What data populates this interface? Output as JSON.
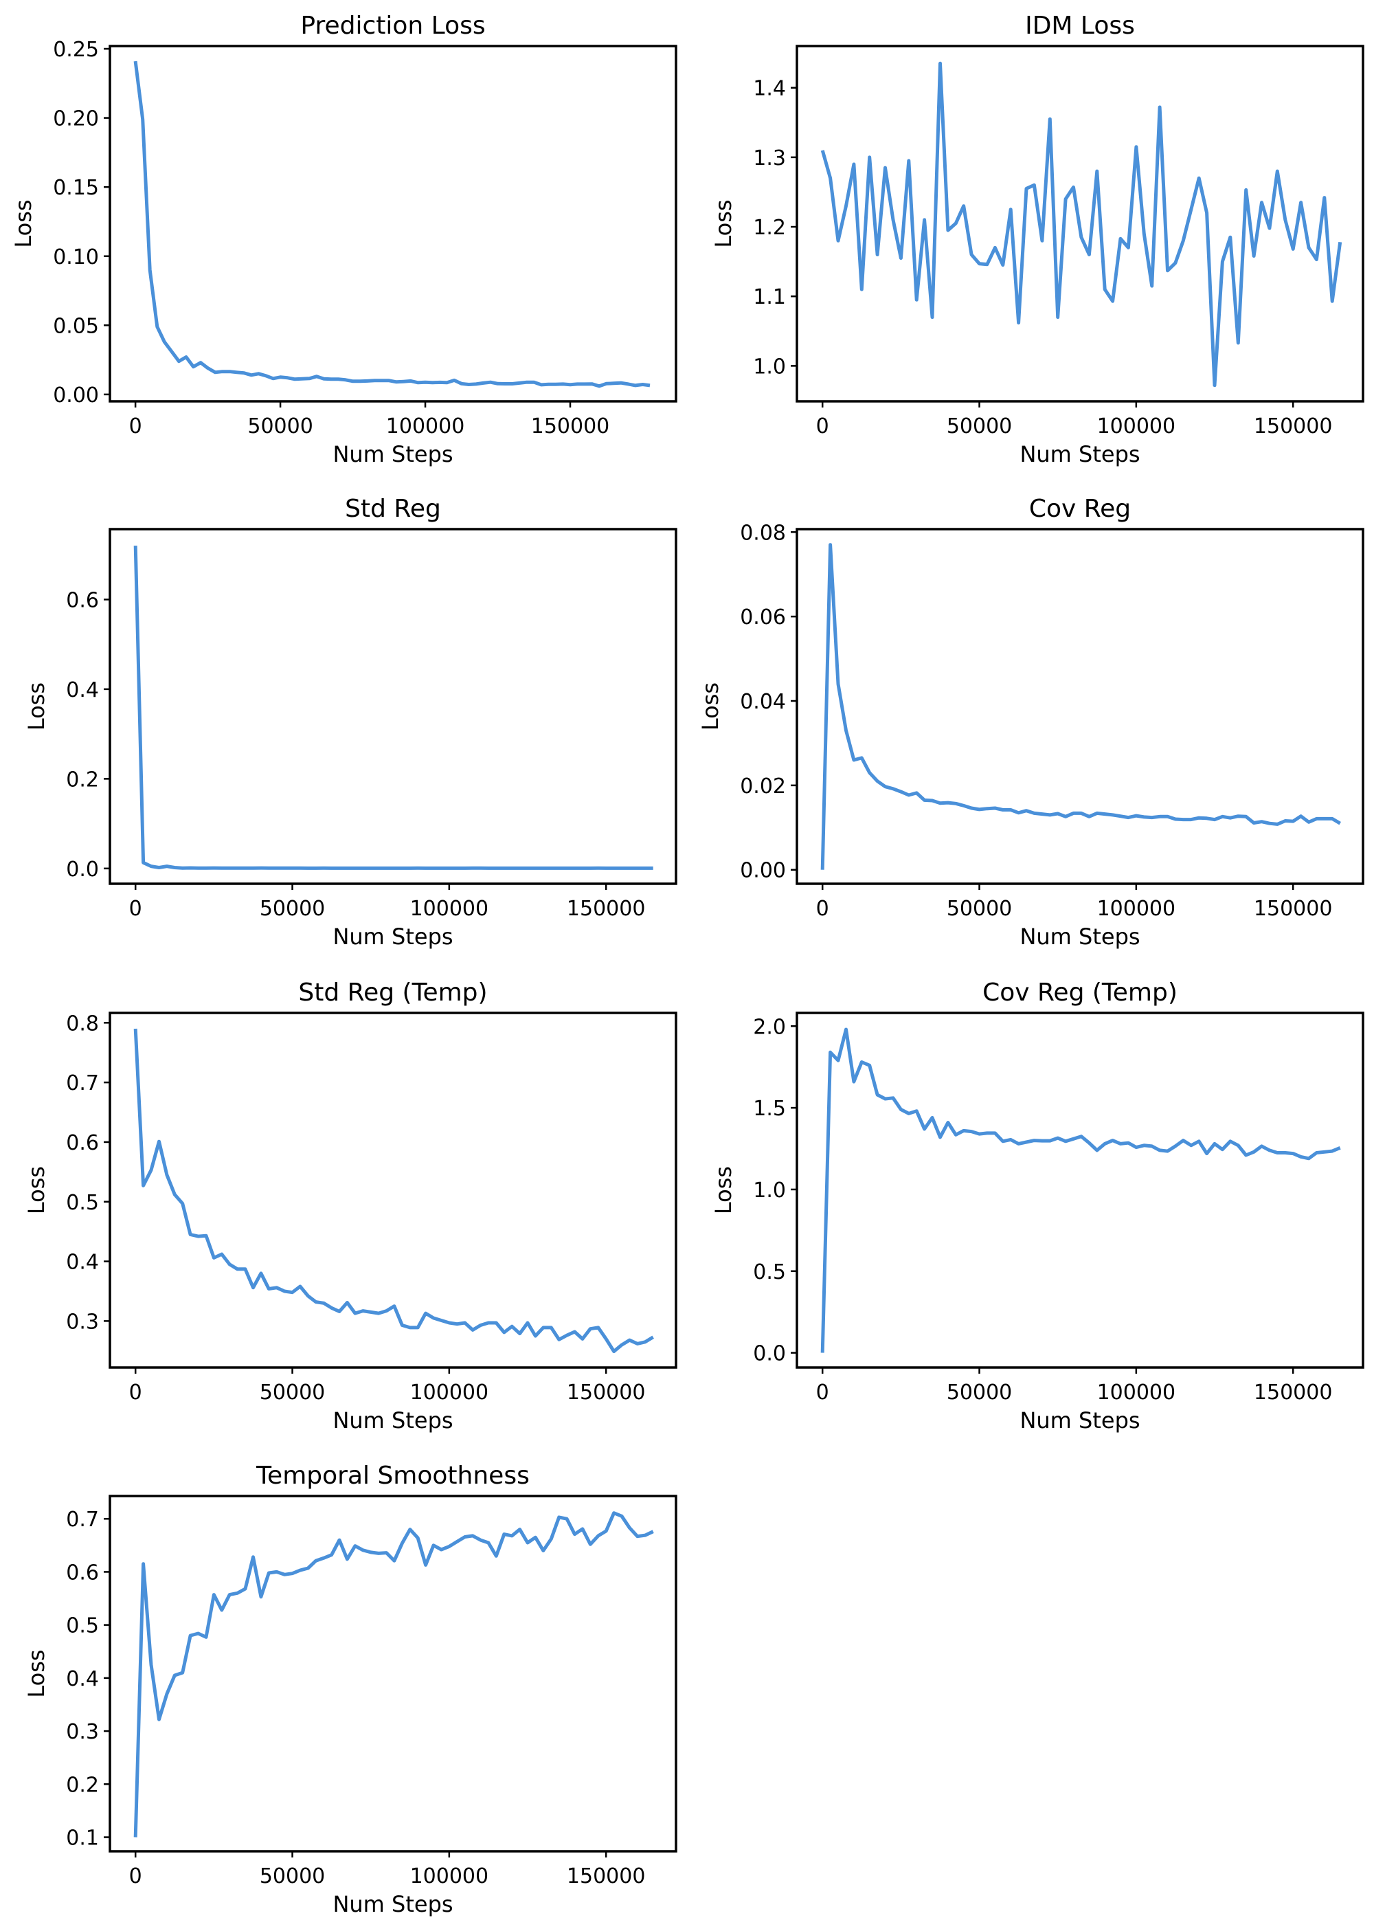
{
  "figure": {
    "line_color": "#4a90d9",
    "spine_color": "#000000",
    "background": "#ffffff",
    "grid": false
  },
  "chart_data": [
    {
      "type": "line",
      "title": "Prediction Loss",
      "xlabel": "Num Steps",
      "ylabel": "Loss",
      "xlim": [
        -8800,
        186500
      ],
      "ylim": [
        -0.005,
        0.252
      ],
      "xticks": [
        0,
        50000,
        100000,
        150000
      ],
      "xtick_labels": [
        "0",
        "50000",
        "100000",
        "150000"
      ],
      "yticks": [
        0,
        0.05,
        0.1,
        0.15,
        0.2,
        0.25
      ],
      "ytick_labels": [
        "0.00",
        "0.05",
        "0.10",
        "0.15",
        "0.20",
        "0.25"
      ],
      "x": [
        0,
        2500,
        5000,
        7500,
        10000,
        12500,
        15000,
        17500,
        20000,
        22500,
        25000,
        27500,
        30000,
        32500,
        35000,
        37500,
        40000,
        42500,
        45000,
        47500,
        50000,
        52500,
        55000,
        57500,
        60000,
        62500,
        65000,
        67500,
        70000,
        72500,
        75000,
        77500,
        80000,
        82500,
        85000,
        87500,
        90000,
        92500,
        95000,
        97500,
        100000,
        102500,
        105000,
        107500,
        110000,
        112500,
        115000,
        117500,
        120000,
        122500,
        125000,
        127500,
        130000,
        132500,
        135000,
        137500,
        140000,
        142500,
        145000,
        147500,
        150000,
        152500,
        155000,
        157500,
        160000,
        162500,
        165000,
        167500,
        170000,
        172500,
        175000,
        177500
      ],
      "y": [
        0.241,
        0.199,
        0.09,
        0.049,
        0.038,
        0.031,
        0.024,
        0.027,
        0.02,
        0.023,
        0.019,
        0.016,
        0.0165,
        0.0165,
        0.016,
        0.0155,
        0.014,
        0.015,
        0.0135,
        0.0115,
        0.0125,
        0.012,
        0.011,
        0.0113,
        0.0115,
        0.013,
        0.0113,
        0.011,
        0.011,
        0.0105,
        0.0095,
        0.0095,
        0.0097,
        0.01,
        0.01,
        0.01,
        0.009,
        0.0093,
        0.0097,
        0.0085,
        0.0088,
        0.0085,
        0.0087,
        0.0085,
        0.0102,
        0.0078,
        0.0072,
        0.0075,
        0.0082,
        0.0088,
        0.0078,
        0.0077,
        0.0077,
        0.0082,
        0.0088,
        0.0088,
        0.007,
        0.0073,
        0.0073,
        0.0075,
        0.0071,
        0.0075,
        0.0075,
        0.0076,
        0.006,
        0.0078,
        0.008,
        0.0083,
        0.0075,
        0.0065,
        0.0072,
        0.0065
      ]
    },
    {
      "type": "line",
      "title": "IDM Loss",
      "xlabel": "Num Steps",
      "ylabel": "Loss",
      "xlim": [
        -8150,
        172300
      ],
      "ylim": [
        0.949,
        1.46
      ],
      "xticks": [
        0,
        50000,
        100000,
        150000
      ],
      "xtick_labels": [
        "0",
        "50000",
        "100000",
        "150000"
      ],
      "yticks": [
        1.0,
        1.1,
        1.2,
        1.3,
        1.4
      ],
      "ytick_labels": [
        "1.0",
        "1.1",
        "1.2",
        "1.3",
        "1.4"
      ],
      "x": [
        0,
        2500,
        5000,
        7500,
        10000,
        12500,
        15000,
        17500,
        20000,
        22500,
        25000,
        27500,
        30000,
        32500,
        35000,
        37500,
        40000,
        42500,
        45000,
        47500,
        50000,
        52500,
        55000,
        57500,
        60000,
        62500,
        65000,
        67500,
        70000,
        72500,
        75000,
        77500,
        80000,
        82500,
        85000,
        87500,
        90000,
        92500,
        95000,
        97500,
        100000,
        102500,
        105000,
        107500,
        110000,
        112500,
        115000,
        117500,
        120000,
        122500,
        125000,
        127500,
        130000,
        132500,
        135000,
        137500,
        140000,
        142500,
        145000,
        147500,
        150000,
        152500,
        155000,
        157500,
        160000,
        162500,
        165000
      ],
      "y": [
        1.31,
        1.27,
        1.18,
        1.23,
        1.29,
        1.11,
        1.3,
        1.16,
        1.285,
        1.21,
        1.155,
        1.295,
        1.095,
        1.21,
        1.07,
        1.435,
        1.195,
        1.205,
        1.23,
        1.16,
        1.147,
        1.146,
        1.17,
        1.145,
        1.225,
        1.062,
        1.255,
        1.26,
        1.18,
        1.355,
        1.07,
        1.24,
        1.257,
        1.185,
        1.16,
        1.28,
        1.11,
        1.093,
        1.183,
        1.17,
        1.315,
        1.19,
        1.115,
        1.372,
        1.137,
        1.148,
        1.18,
        1.225,
        1.27,
        1.22,
        0.972,
        1.15,
        1.185,
        1.033,
        1.253,
        1.158,
        1.235,
        1.198,
        1.28,
        1.21,
        1.168,
        1.235,
        1.17,
        1.153,
        1.242,
        1.093,
        1.178
      ]
    },
    {
      "type": "line",
      "title": "Std Reg",
      "xlabel": "Num Steps",
      "ylabel": "Loss",
      "xlim": [
        -8150,
        172300
      ],
      "ylim": [
        -0.034,
        0.757
      ],
      "xticks": [
        0,
        50000,
        100000,
        150000
      ],
      "xtick_labels": [
        "0",
        "50000",
        "100000",
        "150000"
      ],
      "yticks": [
        0,
        0.2,
        0.4,
        0.6
      ],
      "ytick_labels": [
        "0.0",
        "0.2",
        "0.4",
        "0.6"
      ],
      "x": [
        0,
        2500,
        5000,
        7500,
        10000,
        12500,
        15000,
        17500,
        20000,
        22500,
        25000,
        27500,
        30000,
        32500,
        35000,
        37500,
        40000,
        42500,
        45000,
        47500,
        50000,
        52500,
        55000,
        57500,
        60000,
        62500,
        65000,
        67500,
        70000,
        72500,
        75000,
        77500,
        80000,
        82500,
        85000,
        87500,
        90000,
        92500,
        95000,
        97500,
        100000,
        102500,
        105000,
        107500,
        110000,
        112500,
        115000,
        117500,
        120000,
        122500,
        125000,
        127500,
        130000,
        132500,
        135000,
        137500,
        140000,
        142500,
        145000,
        147500,
        150000,
        152500,
        155000,
        157500,
        160000,
        162500,
        165000
      ],
      "y": [
        0.72,
        0.013,
        0.005,
        0.002,
        0.005,
        0.002,
        0.001,
        0.0012,
        0.001,
        0.001,
        0.0011,
        0.001,
        0.0008,
        0.0008,
        0.0008,
        0.0009,
        0.0011,
        0.001,
        0.0009,
        0.0008,
        0.0008,
        0.0008,
        0.0007,
        0.0007,
        0.0008,
        0.0007,
        0.0007,
        0.0007,
        0.0007,
        0.0007,
        0.0007,
        0.0007,
        0.0007,
        0.0007,
        0.0007,
        0.0007,
        0.0008,
        0.0007,
        0.0007,
        0.0007,
        0.0007,
        0.0007,
        0.0007,
        0.0008,
        0.0008,
        0.0007,
        0.0007,
        0.0007,
        0.0007,
        0.0007,
        0.0007,
        0.0007,
        0.0007,
        0.0007,
        0.0007,
        0.0007,
        0.0007,
        0.0007,
        0.0007,
        0.0008,
        0.0007,
        0.0007,
        0.0007,
        0.0007,
        0.0007,
        0.0007,
        0.0007
      ]
    },
    {
      "type": "line",
      "title": "Cov Reg",
      "xlabel": "Num Steps",
      "ylabel": "Loss",
      "xlim": [
        -8150,
        172300
      ],
      "ylim": [
        -0.0033,
        0.0807
      ],
      "xticks": [
        0,
        50000,
        100000,
        150000
      ],
      "xtick_labels": [
        "0",
        "50000",
        "100000",
        "150000"
      ],
      "yticks": [
        0,
        0.02,
        0.04,
        0.06,
        0.08
      ],
      "ytick_labels": [
        "0.00",
        "0.02",
        "0.04",
        "0.06",
        "0.08"
      ],
      "x": [
        0,
        2500,
        5000,
        7500,
        10000,
        12500,
        15000,
        17500,
        20000,
        22500,
        25000,
        27500,
        30000,
        32500,
        35000,
        37500,
        40000,
        42500,
        45000,
        47500,
        50000,
        52500,
        55000,
        57500,
        60000,
        62500,
        65000,
        67500,
        70000,
        72500,
        75000,
        77500,
        80000,
        82500,
        85000,
        87500,
        90000,
        92500,
        95000,
        97500,
        100000,
        102500,
        105000,
        107500,
        110000,
        112500,
        115000,
        117500,
        120000,
        122500,
        125000,
        127500,
        130000,
        132500,
        135000,
        137500,
        140000,
        142500,
        145000,
        147500,
        150000,
        152500,
        155000,
        157500,
        160000,
        162500,
        165000
      ],
      "y": [
        0.0,
        0.077,
        0.044,
        0.033,
        0.026,
        0.0265,
        0.023,
        0.021,
        0.0197,
        0.0192,
        0.0185,
        0.0177,
        0.0182,
        0.0165,
        0.0164,
        0.0158,
        0.0159,
        0.0157,
        0.0152,
        0.0146,
        0.0143,
        0.0145,
        0.0146,
        0.0142,
        0.0142,
        0.0135,
        0.014,
        0.0134,
        0.0132,
        0.013,
        0.0133,
        0.0126,
        0.0134,
        0.0134,
        0.0126,
        0.0134,
        0.0132,
        0.013,
        0.0127,
        0.0124,
        0.0128,
        0.0125,
        0.0124,
        0.0126,
        0.0126,
        0.012,
        0.0119,
        0.0119,
        0.0123,
        0.0122,
        0.0119,
        0.0126,
        0.0123,
        0.0127,
        0.0126,
        0.0111,
        0.0114,
        0.011,
        0.0108,
        0.0116,
        0.0115,
        0.0127,
        0.0113,
        0.0121,
        0.0121,
        0.0121,
        0.011
      ]
    },
    {
      "type": "line",
      "title": "Std Reg (Temp)",
      "xlabel": "Num Steps",
      "ylabel": "Loss",
      "xlim": [
        -8150,
        172300
      ],
      "ylim": [
        0.2221,
        0.8165
      ],
      "xticks": [
        0,
        50000,
        100000,
        150000
      ],
      "xtick_labels": [
        "0",
        "50000",
        "100000",
        "150000"
      ],
      "yticks": [
        0.3,
        0.4,
        0.5,
        0.6,
        0.7,
        0.8
      ],
      "ytick_labels": [
        "0.3",
        "0.4",
        "0.5",
        "0.6",
        "0.7",
        "0.8"
      ],
      "x": [
        0,
        2500,
        5000,
        7500,
        10000,
        12500,
        15000,
        17500,
        20000,
        22500,
        25000,
        27500,
        30000,
        32500,
        35000,
        37500,
        40000,
        42500,
        45000,
        47500,
        50000,
        52500,
        55000,
        57500,
        60000,
        62500,
        65000,
        67500,
        70000,
        72500,
        75000,
        77500,
        80000,
        82500,
        85000,
        87500,
        90000,
        92500,
        95000,
        97500,
        100000,
        102500,
        105000,
        107500,
        110000,
        112500,
        115000,
        117500,
        120000,
        122500,
        125000,
        127500,
        130000,
        132500,
        135000,
        137500,
        140000,
        142500,
        145000,
        147500,
        150000,
        152500,
        155000,
        157500,
        160000,
        162500,
        165000
      ],
      "y": [
        0.79,
        0.527,
        0.553,
        0.601,
        0.545,
        0.512,
        0.497,
        0.445,
        0.442,
        0.443,
        0.406,
        0.412,
        0.395,
        0.387,
        0.387,
        0.356,
        0.38,
        0.354,
        0.356,
        0.35,
        0.348,
        0.358,
        0.342,
        0.332,
        0.33,
        0.322,
        0.316,
        0.331,
        0.313,
        0.317,
        0.315,
        0.313,
        0.317,
        0.325,
        0.293,
        0.289,
        0.289,
        0.313,
        0.305,
        0.301,
        0.297,
        0.295,
        0.297,
        0.285,
        0.293,
        0.297,
        0.297,
        0.281,
        0.291,
        0.279,
        0.297,
        0.275,
        0.289,
        0.289,
        0.269,
        0.276,
        0.282,
        0.27,
        0.287,
        0.289,
        0.27,
        0.249,
        0.26,
        0.268,
        0.262,
        0.265,
        0.273
      ]
    },
    {
      "type": "line",
      "title": "Cov Reg (Temp)",
      "xlabel": "Num Steps",
      "ylabel": "Loss",
      "xlim": [
        -8150,
        172300
      ],
      "ylim": [
        -0.09,
        2.081
      ],
      "xticks": [
        0,
        50000,
        100000,
        150000
      ],
      "xtick_labels": [
        "0",
        "50000",
        "100000",
        "150000"
      ],
      "yticks": [
        0,
        0.5,
        1.0,
        1.5,
        2.0
      ],
      "ytick_labels": [
        "0.0",
        "0.5",
        "1.0",
        "1.5",
        "2.0"
      ],
      "x": [
        0,
        2500,
        5000,
        7500,
        10000,
        12500,
        15000,
        17500,
        20000,
        22500,
        25000,
        27500,
        30000,
        32500,
        35000,
        37500,
        40000,
        42500,
        45000,
        47500,
        50000,
        52500,
        55000,
        57500,
        60000,
        62500,
        65000,
        67500,
        70000,
        72500,
        75000,
        77500,
        80000,
        82500,
        85000,
        87500,
        90000,
        92500,
        95000,
        97500,
        100000,
        102500,
        105000,
        107500,
        110000,
        112500,
        115000,
        117500,
        120000,
        122500,
        125000,
        127500,
        130000,
        132500,
        135000,
        137500,
        140000,
        142500,
        145000,
        147500,
        150000,
        152500,
        155000,
        157500,
        160000,
        162500,
        165000
      ],
      "y": [
        0.0,
        1.84,
        1.79,
        1.98,
        1.66,
        1.78,
        1.76,
        1.58,
        1.555,
        1.56,
        1.49,
        1.465,
        1.48,
        1.37,
        1.44,
        1.32,
        1.41,
        1.335,
        1.36,
        1.355,
        1.34,
        1.345,
        1.345,
        1.295,
        1.305,
        1.28,
        1.29,
        1.3,
        1.298,
        1.298,
        1.315,
        1.295,
        1.31,
        1.325,
        1.285,
        1.24,
        1.28,
        1.3,
        1.28,
        1.285,
        1.258,
        1.27,
        1.265,
        1.24,
        1.235,
        1.265,
        1.3,
        1.27,
        1.295,
        1.22,
        1.28,
        1.245,
        1.295,
        1.27,
        1.21,
        1.23,
        1.265,
        1.24,
        1.225,
        1.225,
        1.22,
        1.2,
        1.19,
        1.225,
        1.23,
        1.235,
        1.255
      ]
    },
    {
      "type": "line",
      "title": "Temporal Smoothness",
      "xlabel": "Num Steps",
      "ylabel": "Loss",
      "xlim": [
        -8150,
        172300
      ],
      "ylim": [
        0.0735,
        0.743
      ],
      "xticks": [
        0,
        50000,
        100000,
        150000
      ],
      "xtick_labels": [
        "0",
        "50000",
        "100000",
        "150000"
      ],
      "yticks": [
        0.1,
        0.2,
        0.3,
        0.4,
        0.5,
        0.6,
        0.7
      ],
      "ytick_labels": [
        "0.1",
        "0.2",
        "0.3",
        "0.4",
        "0.5",
        "0.6",
        "0.7"
      ],
      "x": [
        0,
        2500,
        5000,
        7500,
        10000,
        12500,
        15000,
        17500,
        20000,
        22500,
        25000,
        27500,
        30000,
        32500,
        35000,
        37500,
        40000,
        42500,
        45000,
        47500,
        50000,
        52500,
        55000,
        57500,
        60000,
        62500,
        65000,
        67500,
        70000,
        72500,
        75000,
        77500,
        80000,
        82500,
        85000,
        87500,
        90000,
        92500,
        95000,
        97500,
        100000,
        102500,
        105000,
        107500,
        110000,
        112500,
        115000,
        117500,
        120000,
        122500,
        125000,
        127500,
        130000,
        132500,
        135000,
        137500,
        140000,
        142500,
        145000,
        147500,
        150000,
        152500,
        155000,
        157500,
        160000,
        162500,
        165000
      ],
      "y": [
        0.1,
        0.615,
        0.425,
        0.322,
        0.37,
        0.405,
        0.41,
        0.48,
        0.484,
        0.477,
        0.557,
        0.528,
        0.557,
        0.56,
        0.568,
        0.628,
        0.553,
        0.598,
        0.6,
        0.595,
        0.597,
        0.603,
        0.607,
        0.621,
        0.626,
        0.632,
        0.66,
        0.624,
        0.649,
        0.641,
        0.637,
        0.635,
        0.636,
        0.621,
        0.654,
        0.68,
        0.664,
        0.613,
        0.65,
        0.642,
        0.648,
        0.657,
        0.666,
        0.668,
        0.66,
        0.655,
        0.63,
        0.671,
        0.668,
        0.68,
        0.655,
        0.665,
        0.64,
        0.662,
        0.703,
        0.7,
        0.671,
        0.681,
        0.652,
        0.668,
        0.677,
        0.711,
        0.705,
        0.683,
        0.667,
        0.669,
        0.676
      ]
    }
  ]
}
